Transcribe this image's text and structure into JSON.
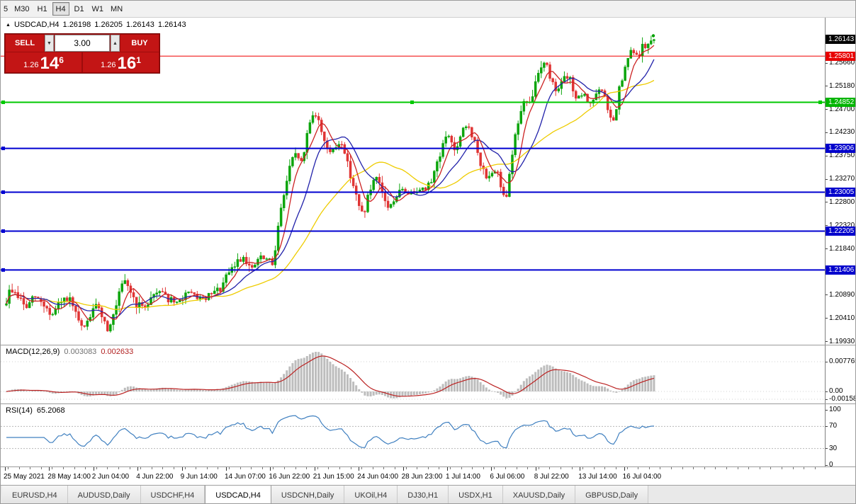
{
  "window": {
    "title": "USDCAD,H4"
  },
  "icons": {
    "panel_toggle": "▲",
    "spinner_up": "▲",
    "spinner_down": "▼"
  },
  "toolbar": {
    "timeframes": [
      {
        "label": "5",
        "active": false,
        "partial": true
      },
      {
        "label": "M30",
        "active": false
      },
      {
        "label": "H1",
        "active": false
      },
      {
        "label": "H4",
        "active": true
      },
      {
        "label": "D1",
        "active": false
      },
      {
        "label": "W1",
        "active": false
      },
      {
        "label": "MN",
        "active": false
      }
    ]
  },
  "quote_header": {
    "symbol_period": "USDCAD,H4",
    "open": "1.26198",
    "high": "1.26205",
    "low": "1.26143",
    "close": "1.26143"
  },
  "trade_panel": {
    "sell_label": "SELL",
    "buy_label": "BUY",
    "volume": "3.00",
    "bid_prefix": "1.26",
    "bid_main": "14",
    "bid_pip": "6",
    "ask_prefix": "1.26",
    "ask_main": "16",
    "ask_pip": "1"
  },
  "price_scale": {
    "grid_labels": [
      {
        "text": "1.25660",
        "price": 1.2566
      },
      {
        "text": "1.25180",
        "price": 1.2518
      },
      {
        "text": "1.24700",
        "price": 1.247
      },
      {
        "text": "1.24230",
        "price": 1.2423
      },
      {
        "text": "1.23750",
        "price": 1.2375
      },
      {
        "text": "1.23270",
        "price": 1.2327
      },
      {
        "text": "1.22800",
        "price": 1.228
      },
      {
        "text": "1.22320",
        "price": 1.2232
      },
      {
        "text": "1.21840",
        "price": 1.2184
      },
      {
        "text": "1.21360",
        "price": 1.2136
      },
      {
        "text": "1.20890",
        "price": 1.2089
      },
      {
        "text": "1.20410",
        "price": 1.2041
      },
      {
        "text": "1.19930",
        "price": 1.1993
      }
    ],
    "level_boxes": [
      {
        "text": "1.26143",
        "price": 1.26143,
        "bg": "#000000",
        "role": "current-price-box"
      },
      {
        "text": "1.25801",
        "price": 1.25801,
        "bg": "#e80000",
        "role": "red-line-price-box"
      },
      {
        "text": "1.24852",
        "price": 1.24852,
        "bg": "#00b400",
        "role": "green-line-price-box"
      },
      {
        "text": "1.23906",
        "price": 1.23906,
        "bg": "#0000cc",
        "role": "blue-line-price-box"
      },
      {
        "text": "1.23005",
        "price": 1.23005,
        "bg": "#0000cc",
        "role": "blue-line-price-box"
      },
      {
        "text": "1.22205",
        "price": 1.22205,
        "bg": "#0000cc",
        "role": "blue-line-price-box"
      },
      {
        "text": "1.21406",
        "price": 1.21406,
        "bg": "#0000cc",
        "role": "blue-line-price-box"
      }
    ]
  },
  "hlines": [
    {
      "price": 1.25801,
      "color": "#f00000",
      "width": 1,
      "handles": "none"
    },
    {
      "price": 1.24852,
      "color": "#00c800",
      "width": 2,
      "handles": "full"
    },
    {
      "price": 1.23906,
      "color": "#0000d0",
      "width": 2,
      "handles": "left"
    },
    {
      "price": 1.23005,
      "color": "#0000d0",
      "width": 2,
      "handles": "left"
    },
    {
      "price": 1.22205,
      "color": "#0000d0",
      "width": 2,
      "handles": "left"
    },
    {
      "price": 1.21406,
      "color": "#0000d0",
      "width": 2,
      "handles": "left"
    }
  ],
  "macd": {
    "label": "MACD(12,26,9)",
    "value_main": "0.003083",
    "value_signal": "0.002633",
    "scale_labels": [
      "0.007765",
      "0.00",
      "-0.001584"
    ]
  },
  "rsi": {
    "label": "RSI(14)",
    "value": "65.2068",
    "scale_labels": [
      "100",
      "70",
      "30",
      "0"
    ],
    "levels": [
      70,
      30
    ]
  },
  "time_axis": {
    "labels": [
      "25 May 2021",
      "28 May 14:00",
      "2 Jun 04:00",
      "4 Jun 22:00",
      "9 Jun 14:00",
      "14 Jun 07:00",
      "16 Jun 22:00",
      "21 Jun 15:00",
      "24 Jun 04:00",
      "28 Jun 23:00",
      "1 Jul 14:00",
      "6 Jul 06:00",
      "8 Jul 22:00",
      "13 Jul 14:00",
      "16 Jul 04:00"
    ]
  },
  "tabs": {
    "items": [
      {
        "label": "EURUSD,H4",
        "active": false
      },
      {
        "label": "AUDUSD,Daily",
        "active": false
      },
      {
        "label": "USDCHF,H4",
        "active": false
      },
      {
        "label": "USDCAD,H4",
        "active": true
      },
      {
        "label": "USDCNH,Daily",
        "active": false
      },
      {
        "label": "UKOil,H4",
        "active": false
      },
      {
        "label": "DJ30,H1",
        "active": false
      },
      {
        "label": "USDX,H1",
        "active": false
      },
      {
        "label": "XAUUSD,Daily",
        "active": false
      },
      {
        "label": "GBPUSD,Daily",
        "active": false
      }
    ]
  },
  "chart_data": {
    "type": "candlestick",
    "symbol": "USDCAD",
    "timeframe": "H4",
    "ohlc": {
      "open": 1.26198,
      "high": 1.26205,
      "low": 1.26143,
      "close": 1.26143
    },
    "last_quote": {
      "bid": "1.26146",
      "ask": "1.26161"
    },
    "y_axis": {
      "min": 1.1993,
      "max": 1.2656
    },
    "horizontal_levels": [
      1.25801,
      1.24852,
      1.23906,
      1.23005,
      1.22205,
      1.21406
    ],
    "colors": {
      "up": "#0ca50c",
      "down": "#e03434",
      "macd_hist": "#bdbdbd",
      "macd_signal": "#bb2222",
      "rsi": "#4080c0"
    },
    "moving_averages": [
      {
        "period": 6,
        "color": "#cc2222"
      },
      {
        "period": 14,
        "color": "#2222aa"
      },
      {
        "period": 34,
        "color": "#eecc00"
      }
    ],
    "indicators": [
      {
        "name": "MACD",
        "params": [
          12,
          26,
          9
        ],
        "current": [
          0.003083,
          0.002633
        ],
        "scale": [
          -0.001584,
          0.007765
        ]
      },
      {
        "name": "RSI",
        "params": [
          14
        ],
        "current": 65.2068,
        "levels": [
          70,
          30
        ]
      }
    ],
    "price_path": [
      [
        8,
        1.2068
      ],
      [
        16,
        1.2102
      ],
      [
        26,
        1.2088
      ],
      [
        38,
        1.2062
      ],
      [
        50,
        1.2086
      ],
      [
        62,
        1.2072
      ],
      [
        74,
        1.2046
      ],
      [
        86,
        1.2072
      ],
      [
        98,
        1.2082
      ],
      [
        110,
        1.204
      ],
      [
        118,
        1.2016
      ],
      [
        130,
        1.2052
      ],
      [
        140,
        1.2068
      ],
      [
        152,
        1.202
      ],
      [
        162,
        1.2046
      ],
      [
        172,
        1.2105
      ],
      [
        180,
        1.2115
      ],
      [
        192,
        1.2072
      ],
      [
        204,
        1.2062
      ],
      [
        216,
        1.2088
      ],
      [
        228,
        1.2102
      ],
      [
        240,
        1.2078
      ],
      [
        252,
        1.2072
      ],
      [
        264,
        1.2094
      ],
      [
        276,
        1.2088
      ],
      [
        288,
        1.2078
      ],
      [
        300,
        1.209
      ],
      [
        312,
        1.2102
      ],
      [
        324,
        1.2132
      ],
      [
        336,
        1.2158
      ],
      [
        346,
        1.217
      ],
      [
        356,
        1.2138
      ],
      [
        366,
        1.2165
      ],
      [
        378,
        1.2162
      ],
      [
        386,
        1.2152
      ],
      [
        394,
        1.2235
      ],
      [
        402,
        1.2298
      ],
      [
        412,
        1.2362
      ],
      [
        420,
        1.2378
      ],
      [
        428,
        1.2358
      ],
      [
        436,
        1.2438
      ],
      [
        444,
        1.2468
      ],
      [
        452,
        1.2438
      ],
      [
        460,
        1.2405
      ],
      [
        468,
        1.238
      ],
      [
        476,
        1.2396
      ],
      [
        484,
        1.2404
      ],
      [
        492,
        1.2355
      ],
      [
        500,
        1.2315
      ],
      [
        508,
        1.2266
      ],
      [
        514,
        1.2256
      ],
      [
        522,
        1.23
      ],
      [
        532,
        1.2328
      ],
      [
        542,
        1.2292
      ],
      [
        550,
        1.2266
      ],
      [
        558,
        1.229
      ],
      [
        568,
        1.2304
      ],
      [
        580,
        1.2298
      ],
      [
        592,
        1.231
      ],
      [
        604,
        1.2306
      ],
      [
        616,
        1.2352
      ],
      [
        626,
        1.2398
      ],
      [
        634,
        1.2418
      ],
      [
        644,
        1.2382
      ],
      [
        654,
        1.2424
      ],
      [
        662,
        1.2438
      ],
      [
        670,
        1.2408
      ],
      [
        678,
        1.2358
      ],
      [
        686,
        1.2338
      ],
      [
        694,
        1.2334
      ],
      [
        702,
        1.2344
      ],
      [
        710,
        1.2302
      ],
      [
        716,
        1.2298
      ],
      [
        724,
        1.2382
      ],
      [
        732,
        1.2444
      ],
      [
        740,
        1.2486
      ],
      [
        748,
        1.2476
      ],
      [
        756,
        1.252
      ],
      [
        764,
        1.2562
      ],
      [
        770,
        1.2572
      ],
      [
        776,
        1.2542
      ],
      [
        784,
        1.2514
      ],
      [
        792,
        1.2518
      ],
      [
        800,
        1.2538
      ],
      [
        808,
        1.2524
      ],
      [
        816,
        1.2486
      ],
      [
        824,
        1.2504
      ],
      [
        832,
        1.2482
      ],
      [
        840,
        1.2494
      ],
      [
        848,
        1.2512
      ],
      [
        856,
        1.2494
      ],
      [
        862,
        1.245
      ],
      [
        868,
        1.2446
      ],
      [
        876,
        1.2518
      ],
      [
        884,
        1.2556
      ],
      [
        892,
        1.2594
      ],
      [
        900,
        1.2578
      ],
      [
        908,
        1.2598
      ],
      [
        916,
        1.2604
      ],
      [
        922,
        1.2612
      ]
    ]
  }
}
